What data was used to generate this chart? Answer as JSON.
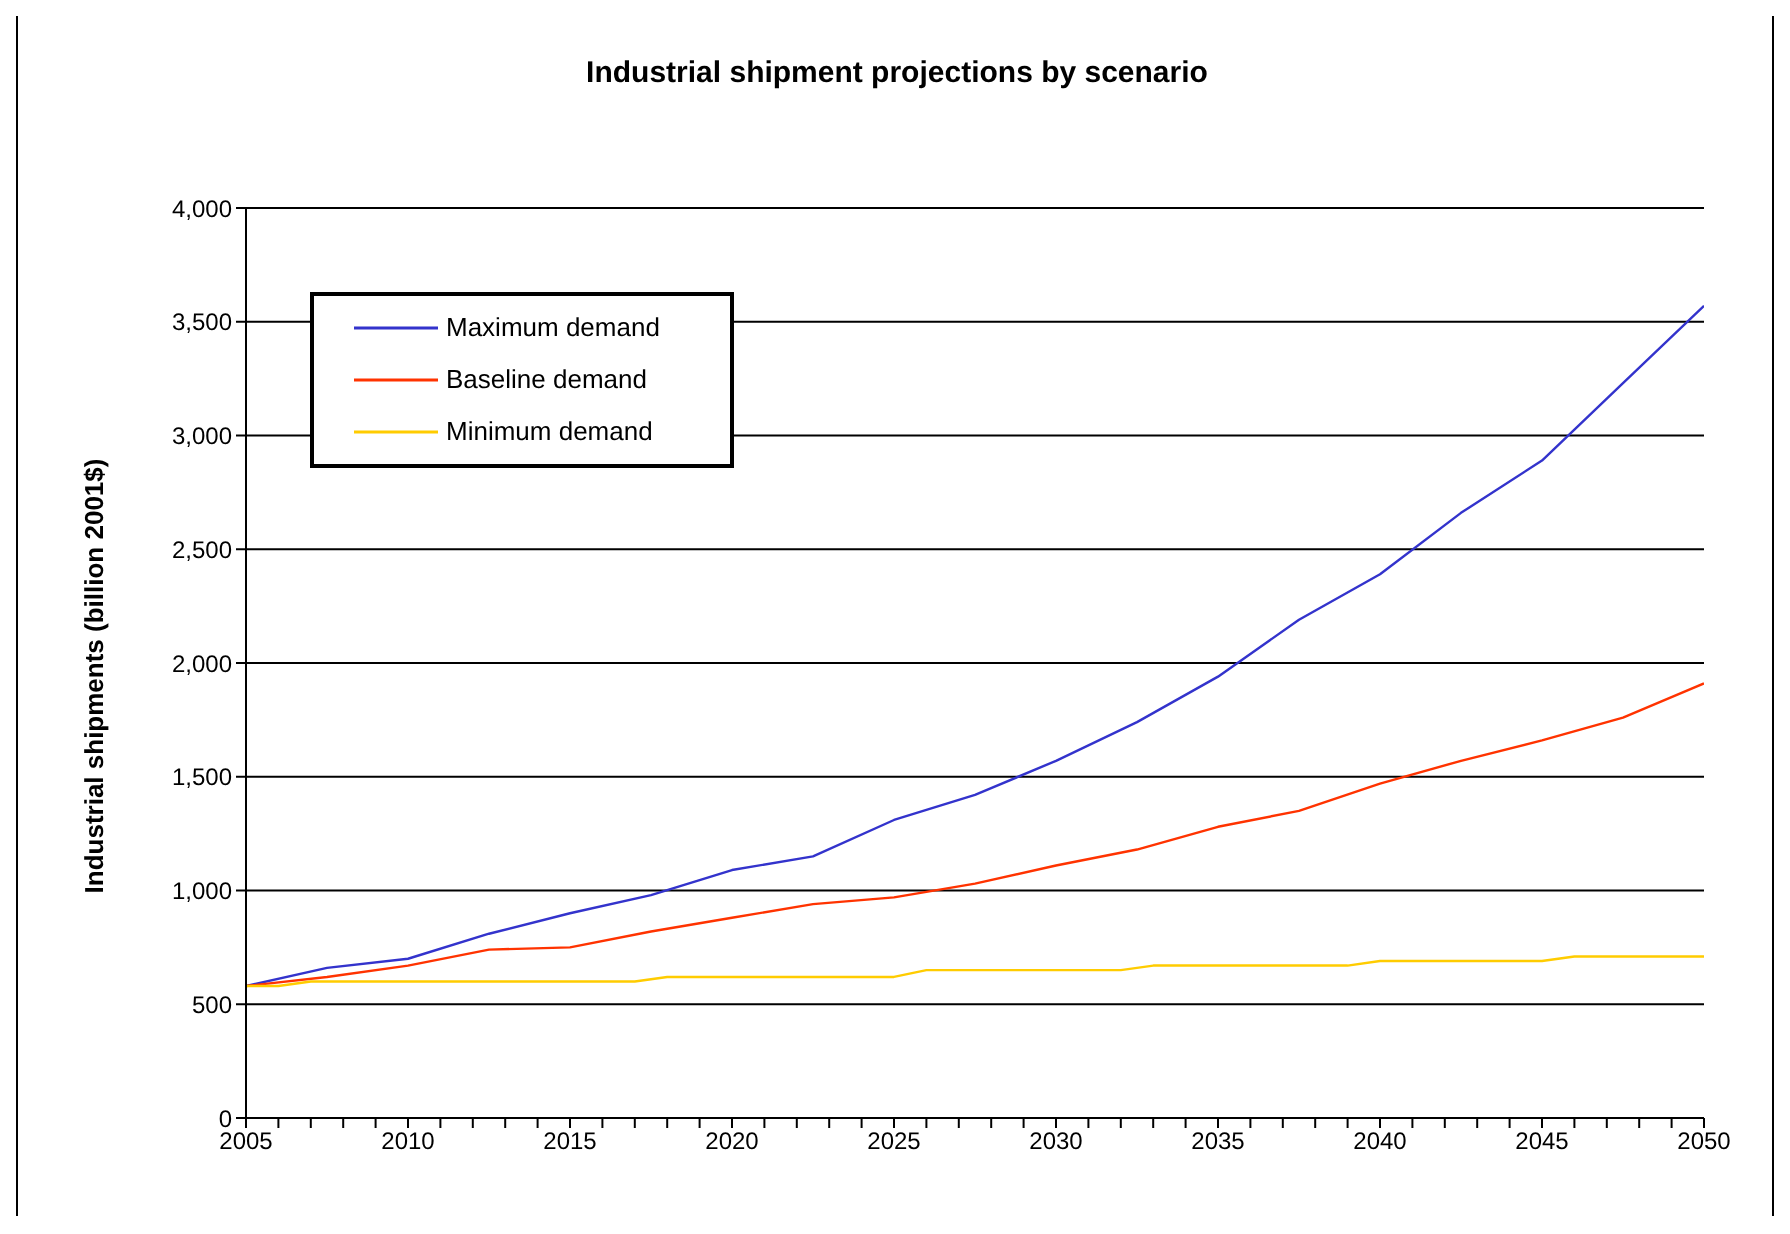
{
  "chart_data": {
    "type": "line",
    "title": "Industrial shipment projections by scenario",
    "ylabel": "Industrial shipments (billion 2001$)",
    "series": [
      {
        "name": "Maximum demand",
        "color": "#3333cc",
        "x": [
          2005,
          2007.5,
          2010,
          2012.5,
          2015,
          2017.5,
          2020,
          2022.5,
          2025,
          2027.5,
          2030,
          2032.5,
          2035,
          2037.5,
          2040,
          2042.5,
          2045,
          2047.5,
          2050
        ],
        "values": [
          580,
          660,
          700,
          810,
          900,
          980,
          1090,
          1150,
          1310,
          1420,
          1570,
          1740,
          1940,
          2190,
          2390,
          2660,
          2890,
          3230,
          3570
        ]
      },
      {
        "name": "Baseline demand",
        "color": "#ff3300",
        "x": [
          2005,
          2007.5,
          2010,
          2012.5,
          2015,
          2017.5,
          2020,
          2022.5,
          2025,
          2027.5,
          2030,
          2032.5,
          2035,
          2037.5,
          2040,
          2042.5,
          2045,
          2047.5,
          2050
        ],
        "values": [
          580,
          620,
          670,
          740,
          750,
          820,
          880,
          940,
          970,
          1030,
          1110,
          1180,
          1280,
          1350,
          1470,
          1570,
          1660,
          1760,
          1910
        ]
      },
      {
        "name": "Minimum demand",
        "color": "#ffcc00",
        "x": [
          2005,
          2006,
          2007,
          2017,
          2018,
          2025,
          2026,
          2032,
          2033,
          2039,
          2040,
          2045,
          2046,
          2050
        ],
        "values": [
          580,
          580,
          600,
          600,
          620,
          620,
          650,
          650,
          670,
          670,
          690,
          690,
          710,
          710
        ]
      }
    ],
    "xlim": [
      2005,
      2050
    ],
    "xticks": [
      2005,
      {
        "value": 2006,
        "label": null
      },
      {
        "value": 2007,
        "label": null
      },
      {
        "value": 2008,
        "label": null
      },
      {
        "value": 2009,
        "label": null
      },
      2010,
      {
        "value": 2011,
        "label": null
      },
      {
        "value": 2012,
        "label": null
      },
      {
        "value": 2013,
        "label": null
      },
      {
        "value": 2014,
        "label": null
      },
      2015,
      {
        "value": 2016,
        "label": null
      },
      {
        "value": 2017,
        "label": null
      },
      {
        "value": 2018,
        "label": null
      },
      {
        "value": 2019,
        "label": null
      },
      2020,
      {
        "value": 2021,
        "label": null
      },
      {
        "value": 2022,
        "label": null
      },
      {
        "value": 2023,
        "label": null
      },
      {
        "value": 2024,
        "label": null
      },
      2025,
      {
        "value": 2026,
        "label": null
      },
      {
        "value": 2027,
        "label": null
      },
      {
        "value": 2028,
        "label": null
      },
      {
        "value": 2029,
        "label": null
      },
      2030,
      {
        "value": 2031,
        "label": null
      },
      {
        "value": 2032,
        "label": null
      },
      {
        "value": 2033,
        "label": null
      },
      {
        "value": 2034,
        "label": null
      },
      2035,
      {
        "value": 2036,
        "label": null
      },
      {
        "value": 2037,
        "label": null
      },
      {
        "value": 2038,
        "label": null
      },
      {
        "value": 2039,
        "label": null
      },
      2040,
      {
        "value": 2041,
        "label": null
      },
      {
        "value": 2042,
        "label": null
      },
      {
        "value": 2043,
        "label": null
      },
      {
        "value": 2044,
        "label": null
      },
      2045,
      {
        "value": 2046,
        "label": null
      },
      {
        "value": 2047,
        "label": null
      },
      {
        "value": 2048,
        "label": null
      },
      {
        "value": 2049,
        "label": null
      },
      2050
    ],
    "ylim": [
      0,
      4000
    ],
    "yticks": [
      0,
      500,
      {
        "value": 1000,
        "label": "1,000"
      },
      {
        "value": 1500,
        "label": "1,500"
      },
      {
        "value": 2000,
        "label": "2,000"
      },
      {
        "value": 2500,
        "label": "2,500"
      },
      {
        "value": 3000,
        "label": "3,000"
      },
      {
        "value": 3500,
        "label": "3,500"
      },
      {
        "value": 4000,
        "label": "4,000"
      }
    ],
    "grid": "y",
    "legend": "top left",
    "marker": "none",
    "line_style": "solid"
  }
}
